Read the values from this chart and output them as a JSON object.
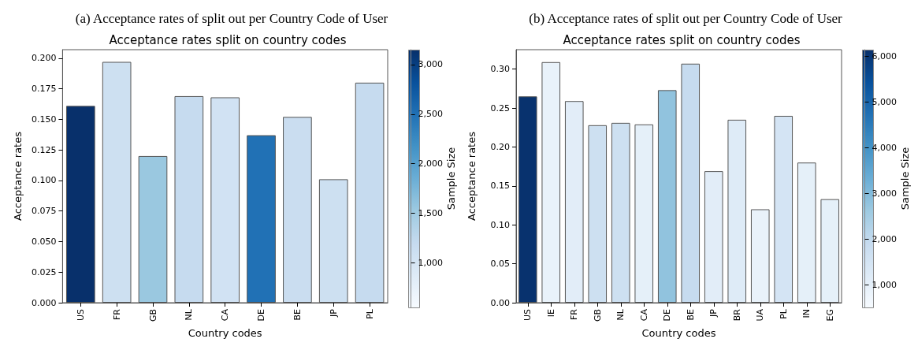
{
  "chart_data": [
    {
      "type": "bar",
      "title": "(a) Acceptance rates of split out per Country Code of User",
      "subtitle": "Acceptance rates split on country codes",
      "xlabel": "Country codes",
      "ylabel": "Acceptance rates",
      "clabel": "Sample Size",
      "categories": [
        "US",
        "FR",
        "GB",
        "NL",
        "CA",
        "DE",
        "BE",
        "JP",
        "PL"
      ],
      "values": [
        0.161,
        0.197,
        0.12,
        0.169,
        0.168,
        0.137,
        0.152,
        0.101,
        0.18
      ],
      "cvalues": [
        3150,
        1100,
        1550,
        1200,
        1050,
        2500,
        1150,
        1100,
        1200
      ],
      "ylim": [
        0,
        0.207
      ],
      "yticks": [
        {
          "value": 0,
          "label": "0.000"
        },
        {
          "value": 0.025,
          "label": "0.025"
        },
        {
          "value": 0.05,
          "label": "0.050"
        },
        {
          "value": 0.075,
          "label": "0.075"
        },
        {
          "value": 0.1,
          "label": "0.100"
        },
        {
          "value": 0.125,
          "label": "0.125"
        },
        {
          "value": 0.15,
          "label": "0.150"
        },
        {
          "value": 0.175,
          "label": "0.175"
        },
        {
          "value": 0.2,
          "label": "0.200"
        }
      ],
      "clim": [
        550,
        3150
      ],
      "cticks": [
        {
          "value": 1000,
          "label": "1,000"
        },
        {
          "value": 1500,
          "label": "1,500"
        },
        {
          "value": 2000,
          "label": "2,000"
        },
        {
          "value": 2500,
          "label": "2,500"
        },
        {
          "value": 3000,
          "label": "3,000"
        }
      ]
    },
    {
      "type": "bar",
      "title": "(b) Acceptance rates of split out per Country Code of User",
      "subtitle": "Acceptance rates split on country codes",
      "xlabel": "Country codes",
      "ylabel": "Acceptance rates",
      "clabel": "Sample Size",
      "categories": [
        "US",
        "IE",
        "FR",
        "GB",
        "NL",
        "CA",
        "DE",
        "BE",
        "JP",
        "BR",
        "UA",
        "PL",
        "IN",
        "EG"
      ],
      "values": [
        0.265,
        0.309,
        0.259,
        0.228,
        0.231,
        0.229,
        0.273,
        0.307,
        0.169,
        0.235,
        0.12,
        0.24,
        0.18,
        0.133
      ],
      "cvalues": [
        6100,
        900,
        1100,
        1700,
        1700,
        1000,
        2800,
        1900,
        1100,
        1200,
        900,
        1500,
        1000,
        1000
      ],
      "ylim": [
        0,
        0.325
      ],
      "yticks": [
        {
          "value": 0,
          "label": "0.00"
        },
        {
          "value": 0.05,
          "label": "0.05"
        },
        {
          "value": 0.1,
          "label": "0.10"
        },
        {
          "value": 0.15,
          "label": "0.15"
        },
        {
          "value": 0.2,
          "label": "0.20"
        },
        {
          "value": 0.25,
          "label": "0.25"
        },
        {
          "value": 0.3,
          "label": "0.30"
        }
      ],
      "clim": [
        500,
        6150
      ],
      "cticks": [
        {
          "value": 1000,
          "label": "1,000"
        },
        {
          "value": 2000,
          "label": "2,000"
        },
        {
          "value": 3000,
          "label": "3,000"
        },
        {
          "value": 4000,
          "label": "4,000"
        },
        {
          "value": 5000,
          "label": "5,000"
        },
        {
          "value": 6000,
          "label": "6,000"
        }
      ]
    }
  ]
}
